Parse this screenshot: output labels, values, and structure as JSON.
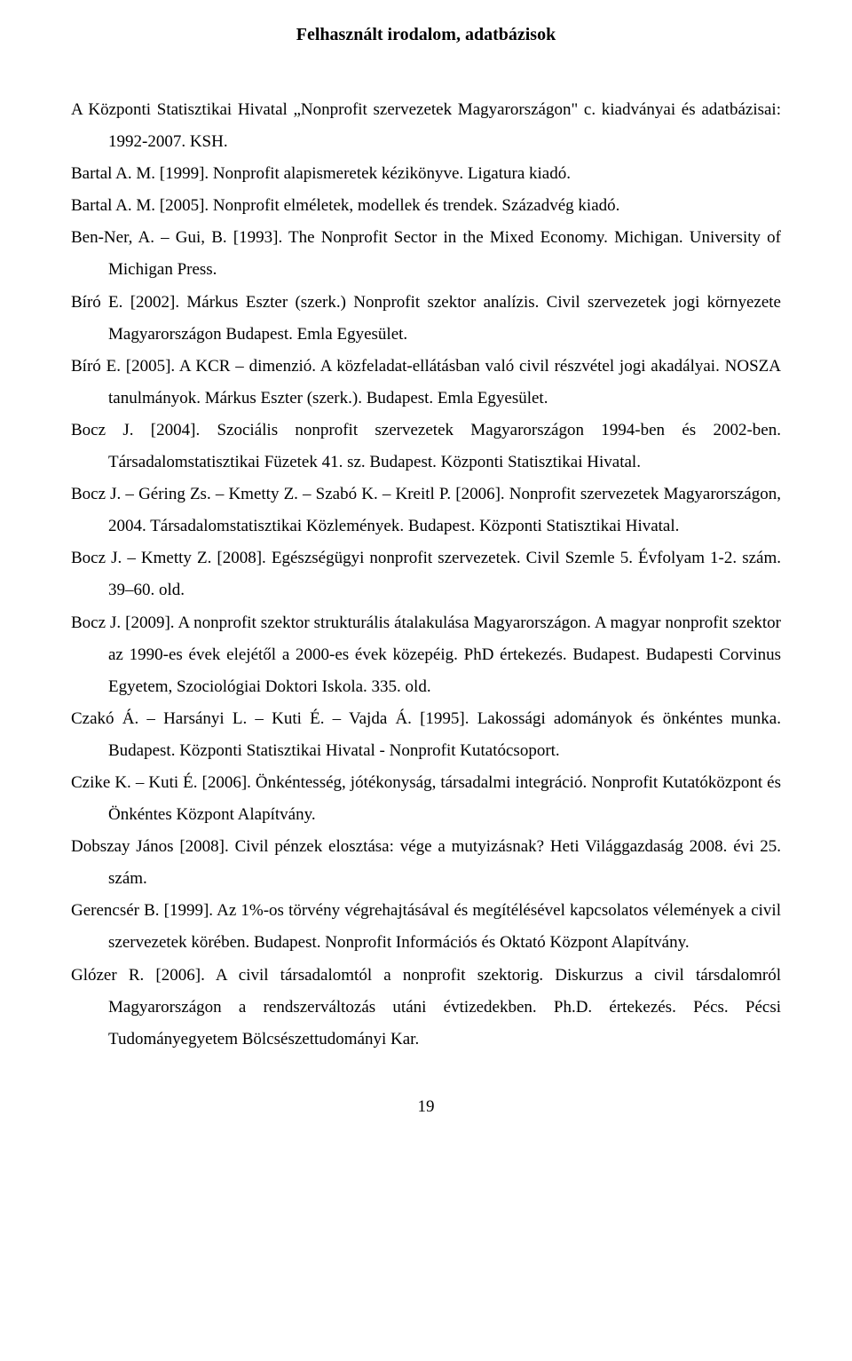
{
  "title": "Felhasznált irodalom, adatbázisok",
  "entries": [
    "A Központi Statisztikai Hivatal „Nonprofit szervezetek Magyarországon\" c. kiadványai és adatbázisai: 1992-2007. KSH.",
    "Bartal A. M. [1999]. Nonprofit alapismeretek kézikönyve. Ligatura kiadó.",
    "Bartal A. M. [2005]. Nonprofit elméletek, modellek és trendek. Századvég kiadó.",
    "Ben-Ner, A. – Gui, B. [1993]. The Nonprofit Sector in the Mixed Economy. Michigan. University of Michigan Press.",
    "Bíró E. [2002]. Márkus Eszter (szerk.) Nonprofit szektor analízis. Civil szervezetek jogi környezete Magyarországon Budapest. Emla Egyesület.",
    "Bíró E. [2005]. A KCR – dimenzió. A közfeladat-ellátásban való civil részvétel jogi akadályai. NOSZA tanulmányok. Márkus Eszter (szerk.). Budapest. Emla Egyesület.",
    "Bocz J. [2004]. Szociális nonprofit szervezetek Magyarországon 1994-ben és 2002-ben. Társadalomstatisztikai Füzetek 41. sz. Budapest. Központi Statisztikai Hivatal.",
    "Bocz J. – Géring Zs. – Kmetty Z. – Szabó K. – Kreitl P. [2006]. Nonprofit szervezetek Magyarországon, 2004. Társadalomstatisztikai Közlemények. Budapest. Központi Statisztikai Hivatal.",
    "Bocz J. – Kmetty Z. [2008]. Egészségügyi nonprofit szervezetek. Civil Szemle 5. Évfolyam 1-2. szám. 39–60. old.",
    "Bocz J. [2009]. A nonprofit szektor strukturális átalakulása Magyarországon. A magyar nonprofit szektor az 1990-es évek elejétől a 2000-es évek közepéig. PhD értekezés. Budapest. Budapesti Corvinus Egyetem, Szociológiai Doktori Iskola. 335. old.",
    "Czakó Á. – Harsányi L. – Kuti É. – Vajda Á. [1995]. Lakossági adományok és önkéntes munka. Budapest. Központi Statisztikai Hivatal - Nonprofit Kutatócsoport.",
    "Czike K. – Kuti É. [2006]. Önkéntesség, jótékonyság, társadalmi integráció. Nonprofit Kutatóközpont és Önkéntes Központ Alapítvány.",
    "Dobszay János [2008]. Civil pénzek elosztása: vége a mutyizásnak? Heti Világgazdaság 2008. évi 25. szám.",
    "Gerencsér B. [1999]. Az 1%-os törvény végrehajtásával és megítélésével kapcsolatos vélemények a civil szervezetek körében. Budapest. Nonprofit Információs és Oktató Központ Alapítvány.",
    "Glózer R. [2006]. A civil társadalomtól a nonprofit szektorig. Diskurzus a civil társdalomról Magyarországon a rendszerváltozás utáni évtizedekben. Ph.D. értekezés. Pécs. Pécsi Tudományegyetem Bölcsészettudományi Kar."
  ],
  "page_number": "19"
}
